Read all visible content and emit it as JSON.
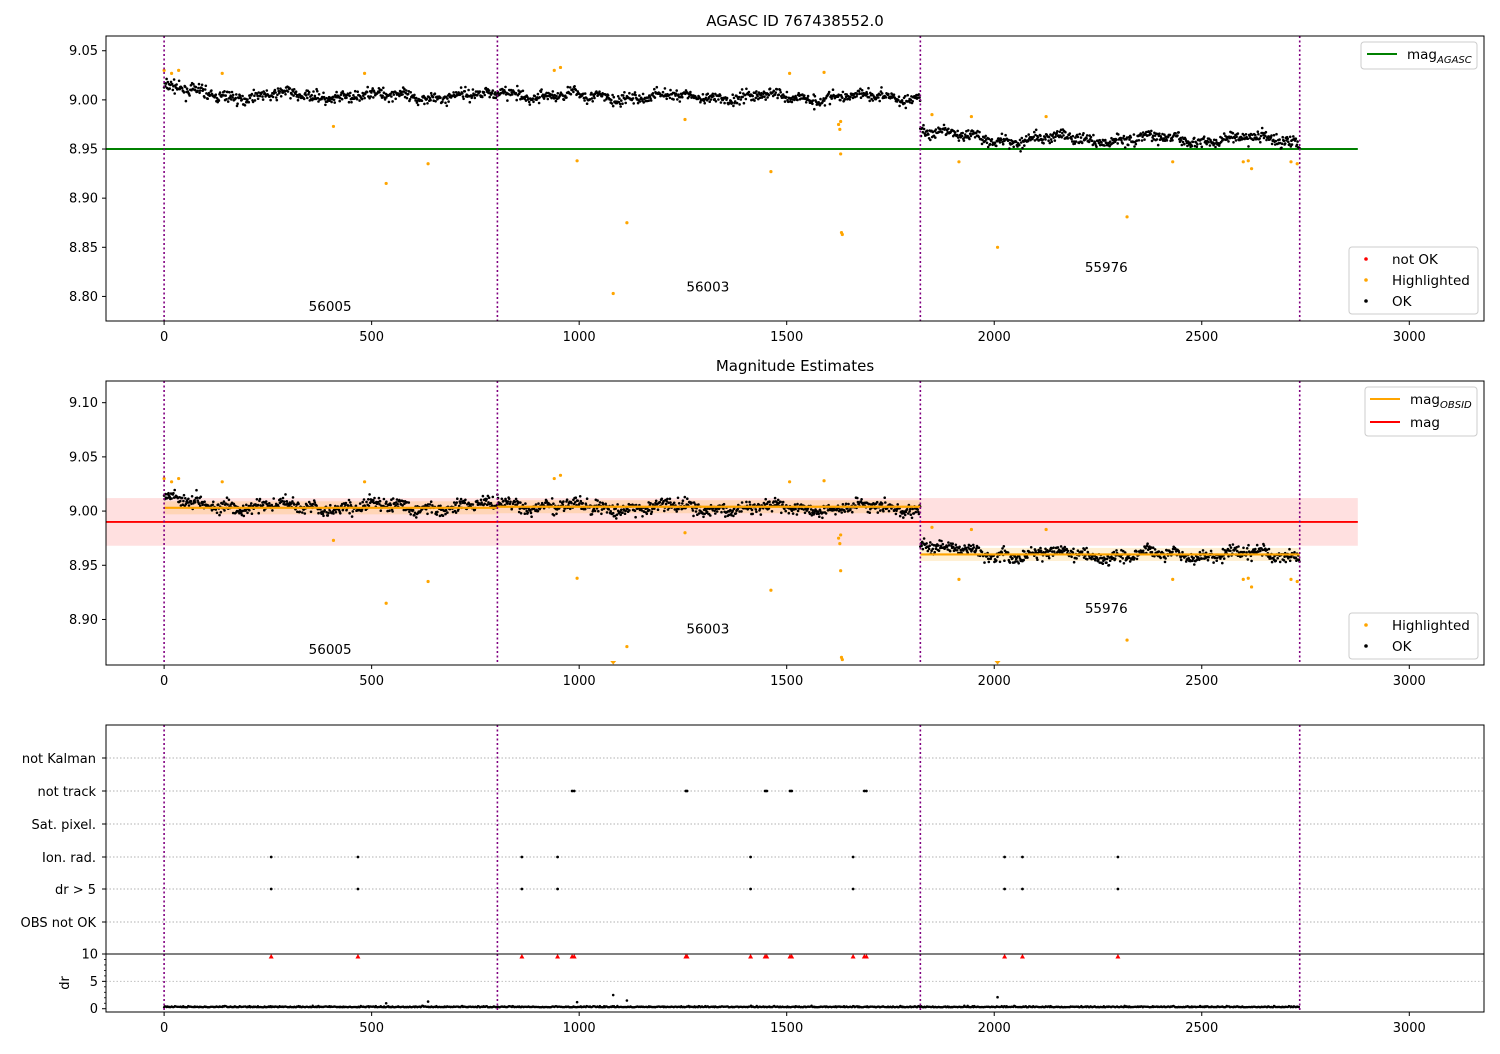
{
  "figure": {
    "title": "AGASC ID 767438552.0",
    "subtitle": "Magnitude Estimates"
  },
  "chart_data": [
    {
      "type": "scatter",
      "panel": "top",
      "title": "AGASC ID 767438552.0",
      "xlim": [
        -140,
        3180
      ],
      "ylim": [
        8.775,
        9.065
      ],
      "xticks": [
        0,
        500,
        1000,
        1500,
        2000,
        2500,
        3000
      ],
      "yticks": [
        8.8,
        8.85,
        8.9,
        8.95,
        9.0,
        9.05
      ],
      "obsid_boundaries": [
        0,
        803,
        1822,
        2736
      ],
      "obsid_labels": [
        {
          "text": "56005",
          "x": 400,
          "y": 8.785
        },
        {
          "text": "56003",
          "x": 1310,
          "y": 8.805
        },
        {
          "text": "55976",
          "x": 2270,
          "y": 8.825
        }
      ],
      "lines": [
        {
          "name": "mag_AGASC",
          "value": 8.95,
          "x": [
            -140,
            2876
          ],
          "color": "#008000"
        }
      ],
      "segments": [
        {
          "x": [
            0,
            803
          ],
          "mean": 9.004,
          "spread": 0.007,
          "start_offset": 0.01
        },
        {
          "x": [
            803,
            1822
          ],
          "mean": 9.003,
          "spread": 0.007,
          "start_offset": 0.008
        },
        {
          "x": [
            1822,
            2736
          ],
          "mean": 8.96,
          "spread": 0.007,
          "start_offset": 0.012
        }
      ],
      "highlighted": [
        {
          "x": 0,
          "y": 9.03
        },
        {
          "x": 18,
          "y": 9.027
        },
        {
          "x": 35,
          "y": 9.03
        },
        {
          "x": 140,
          "y": 9.027
        },
        {
          "x": 408,
          "y": 8.973
        },
        {
          "x": 483,
          "y": 9.027
        },
        {
          "x": 535,
          "y": 8.915
        },
        {
          "x": 636,
          "y": 8.935
        },
        {
          "x": 940,
          "y": 9.03
        },
        {
          "x": 955,
          "y": 9.033
        },
        {
          "x": 995,
          "y": 8.938
        },
        {
          "x": 1082,
          "y": 8.803
        },
        {
          "x": 1115,
          "y": 8.875
        },
        {
          "x": 1255,
          "y": 8.98
        },
        {
          "x": 1462,
          "y": 8.927
        },
        {
          "x": 1507,
          "y": 9.027
        },
        {
          "x": 1590,
          "y": 9.028
        },
        {
          "x": 1625,
          "y": 8.975
        },
        {
          "x": 1628,
          "y": 8.97
        },
        {
          "x": 1630,
          "y": 8.978
        },
        {
          "x": 1630,
          "y": 8.945
        },
        {
          "x": 1632,
          "y": 8.865
        },
        {
          "x": 1634,
          "y": 8.863
        },
        {
          "x": 1850,
          "y": 8.985
        },
        {
          "x": 1915,
          "y": 8.937
        },
        {
          "x": 1945,
          "y": 8.983
        },
        {
          "x": 2008,
          "y": 8.85
        },
        {
          "x": 2125,
          "y": 8.983
        },
        {
          "x": 2320,
          "y": 8.881
        },
        {
          "x": 2430,
          "y": 8.937
        },
        {
          "x": 2600,
          "y": 8.937
        },
        {
          "x": 2612,
          "y": 8.938
        },
        {
          "x": 2620,
          "y": 8.93
        },
        {
          "x": 2715,
          "y": 8.937
        },
        {
          "x": 2730,
          "y": 8.935
        }
      ],
      "legend_top": [
        {
          "label": "mag",
          "sub": "AGASC",
          "color": "#008000"
        }
      ],
      "legend_bottom": [
        {
          "label": "not OK",
          "color": "#ff0000"
        },
        {
          "label": "Highlighted",
          "color": "#ffa500"
        },
        {
          "label": "OK",
          "color": "#000000"
        }
      ]
    },
    {
      "type": "scatter",
      "panel": "middle",
      "title": "Magnitude Estimates",
      "xlim": [
        -140,
        3180
      ],
      "ylim": [
        8.858,
        9.12
      ],
      "xticks": [
        0,
        500,
        1000,
        1500,
        2000,
        2500,
        3000
      ],
      "yticks": [
        8.9,
        8.95,
        9.0,
        9.05,
        9.1
      ],
      "obsid_boundaries": [
        0,
        803,
        1822,
        2736
      ],
      "obsid_labels": [
        {
          "text": "56005",
          "x": 400,
          "y": 8.868
        },
        {
          "text": "56003",
          "x": 1310,
          "y": 8.887
        },
        {
          "text": "55976",
          "x": 2270,
          "y": 8.906
        }
      ],
      "lines": [
        {
          "name": "mag",
          "value": 8.99,
          "band": [
            8.968,
            9.012
          ],
          "x": [
            -140,
            2876
          ],
          "color": "#ff0000"
        }
      ],
      "obsid_means": [
        {
          "x": [
            0,
            803
          ],
          "value": 9.003
        },
        {
          "x": [
            803,
            1822
          ],
          "value": 9.004
        },
        {
          "x": [
            1822,
            2736
          ],
          "value": 8.96
        }
      ],
      "highlighted_offscale": [
        {
          "x": 1082
        },
        {
          "x": 2008
        }
      ],
      "legend_top": [
        {
          "label": "mag",
          "sub": "OBSID",
          "color": "#ffa500"
        },
        {
          "label": "mag",
          "sub": "",
          "color": "#ff0000"
        }
      ],
      "legend_bottom": [
        {
          "label": "Highlighted",
          "color": "#ffa500"
        },
        {
          "label": "OK",
          "color": "#000000"
        }
      ]
    },
    {
      "type": "scatter",
      "panel": "flags",
      "xlim": [
        -140,
        3180
      ],
      "categories": [
        "not Kalman",
        "not track",
        "Sat. pixel.",
        "Ion. rad.",
        "dr > 5",
        "OBS not OK"
      ],
      "flag_points": {
        "not track": [
          983,
          988,
          1257,
          1260,
          1448,
          1452,
          1508,
          1512,
          1687,
          1692
        ],
        "Ion. rad.": [
          258,
          467,
          862,
          948,
          1413,
          1660,
          2025,
          2068,
          2298
        ],
        "dr > 5": [
          258,
          467,
          862,
          948,
          1413,
          1660,
          2025,
          2068,
          2298
        ]
      }
    },
    {
      "type": "scatter",
      "panel": "dr",
      "ylabel": "dr",
      "xlim": [
        -140,
        3180
      ],
      "ylim": [
        -0.6,
        10
      ],
      "yticks": [
        0,
        5,
        10
      ],
      "xticks": [
        0,
        500,
        1000,
        1500,
        2000,
        2500,
        3000
      ],
      "clipped_at_10": [
        258,
        467,
        862,
        948,
        983,
        988,
        1257,
        1260,
        1413,
        1448,
        1452,
        1508,
        1512,
        1660,
        1687,
        1692,
        2025,
        2068,
        2298
      ],
      "outliers": [
        {
          "x": 535,
          "y": 1.0
        },
        {
          "x": 636,
          "y": 1.3
        },
        {
          "x": 995,
          "y": 1.2
        },
        {
          "x": 1082,
          "y": 2.5
        },
        {
          "x": 1115,
          "y": 1.5
        },
        {
          "x": 2008,
          "y": 2.1
        }
      ]
    }
  ]
}
